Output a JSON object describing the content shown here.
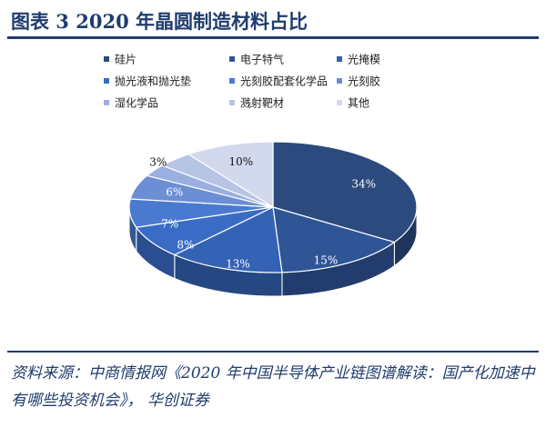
{
  "header": {
    "title": "图表 3   2020 年晶圆制造材料占比"
  },
  "chart_data": {
    "type": "pie",
    "title": "",
    "legend_position": "top",
    "series": [
      {
        "name": "硅片",
        "value": 34,
        "label": "34%",
        "color": "#2c4a7e"
      },
      {
        "name": "电子特气",
        "value": 15,
        "label": "15%",
        "color": "#2f5597"
      },
      {
        "name": "光掩模",
        "value": 13,
        "label": "13%",
        "color": "#3462b5"
      },
      {
        "name": "抛光液和抛光垫",
        "value": 8,
        "label": "8%",
        "color": "#3a6cc6"
      },
      {
        "name": "光刻胶配套化学品",
        "value": 7,
        "label": "7%",
        "color": "#4a7ad0"
      },
      {
        "name": "光刻胶",
        "value": 6,
        "label": "6%",
        "color": "#6b8ed4"
      },
      {
        "name": "湿化学品",
        "value": 3,
        "label": "3%",
        "color": "#9aafe0"
      },
      {
        "name": "溅射靶材",
        "value": 4,
        "label": "",
        "color": "#b7c4e4"
      },
      {
        "name": "其他",
        "value": 10,
        "label": "10%",
        "color": "#d3d9ec"
      }
    ]
  },
  "footer": {
    "source": "资料来源：中商情报网《2020 年中国半导体产业链图谱解读：国产化加速中有哪些投资机会》， 华创证券"
  }
}
